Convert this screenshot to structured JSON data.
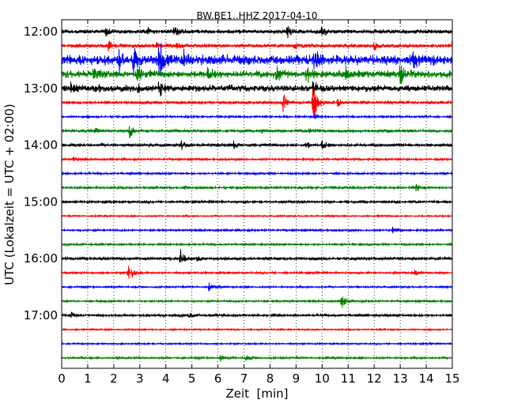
{
  "chart_data": {
    "type": "line",
    "title": "BW.BE1..HHZ 2017-04-10",
    "xlabel": "Zeit  [min]",
    "ylabel": "UTC (Lokalzeit = UTC + 02:00)",
    "xlim": [
      0,
      15
    ],
    "x_ticks": [
      "0",
      "1",
      "2",
      "3",
      "4",
      "5",
      "6",
      "7",
      "8",
      "9",
      "10",
      "11",
      "12",
      "13",
      "14",
      "15"
    ],
    "y_ticks": [
      "12:00",
      "13:00",
      "14:00",
      "15:00",
      "16:00",
      "17:00"
    ],
    "grid": "vertical dotted at each minute",
    "trace_interval_min": 15,
    "color_cycle": [
      "#000000",
      "#ff0000",
      "#0000ff",
      "#008000"
    ],
    "series": [
      {
        "start": "12:00",
        "color": "#000000",
        "noise": 2.2,
        "events": [
          {
            "t": 1.7,
            "a": 4
          },
          {
            "t": 3.3,
            "a": 4
          },
          {
            "t": 4.3,
            "a": 7
          },
          {
            "t": 8.65,
            "a": 9
          },
          {
            "t": 10.0,
            "a": 9
          }
        ]
      },
      {
        "start": "12:15",
        "color": "#ff0000",
        "noise": 2.0,
        "events": [
          {
            "t": 1.8,
            "a": 7
          },
          {
            "t": 3.65,
            "a": 5
          },
          {
            "t": 4.4,
            "a": 3
          },
          {
            "t": 8.95,
            "a": 4
          },
          {
            "t": 12.0,
            "a": 5
          },
          {
            "t": 14.95,
            "a": 6
          }
        ]
      },
      {
        "start": "12:30",
        "color": "#0000ff",
        "noise": 5.5,
        "events": [
          {
            "t": 2.2,
            "a": 12
          },
          {
            "t": 2.75,
            "a": 18
          },
          {
            "t": 3.75,
            "a": 32
          },
          {
            "t": 4.7,
            "a": 9
          },
          {
            "t": 9.7,
            "a": 12
          },
          {
            "t": 13.5,
            "a": 7
          }
        ]
      },
      {
        "start": "12:45",
        "color": "#008000",
        "noise": 4.0,
        "events": [
          {
            "t": 1.2,
            "a": 8
          },
          {
            "t": 2.9,
            "a": 11
          },
          {
            "t": 5.6,
            "a": 7
          },
          {
            "t": 8.25,
            "a": 10
          },
          {
            "t": 9.4,
            "a": 12
          },
          {
            "t": 10.9,
            "a": 9
          },
          {
            "t": 13.0,
            "a": 11
          }
        ]
      },
      {
        "start": "13:00",
        "color": "#000000",
        "noise": 3.5,
        "events": [
          {
            "t": 0.35,
            "a": 6
          },
          {
            "t": 1.3,
            "a": 5
          },
          {
            "t": 2.9,
            "a": 6
          },
          {
            "t": 3.75,
            "a": 12
          },
          {
            "t": 9.65,
            "a": 10
          }
        ]
      },
      {
        "start": "13:15",
        "color": "#ff0000",
        "noise": 1.5,
        "events": [
          {
            "t": 8.5,
            "a": 13
          },
          {
            "t": 9.65,
            "a": 38
          },
          {
            "t": 10.6,
            "a": 5
          }
        ]
      },
      {
        "start": "13:30",
        "color": "#0000ff",
        "noise": 1.0,
        "events": [
          {
            "t": 9.7,
            "a": 4
          }
        ]
      },
      {
        "start": "13:45",
        "color": "#008000",
        "noise": 1.5,
        "events": [
          {
            "t": 1.3,
            "a": 3
          },
          {
            "t": 2.6,
            "a": 9
          },
          {
            "t": 7.7,
            "a": 3
          },
          {
            "t": 9.5,
            "a": 4
          }
        ]
      },
      {
        "start": "14:00",
        "color": "#000000",
        "noise": 1.5,
        "events": [
          {
            "t": 4.6,
            "a": 5
          },
          {
            "t": 6.6,
            "a": 5
          },
          {
            "t": 9.4,
            "a": 5
          },
          {
            "t": 10.0,
            "a": 7
          }
        ]
      },
      {
        "start": "14:15",
        "color": "#ff0000",
        "noise": 1.0,
        "events": [
          {
            "t": 0.45,
            "a": 4
          }
        ]
      },
      {
        "start": "14:30",
        "color": "#0000ff",
        "noise": 1.0,
        "events": []
      },
      {
        "start": "14:45",
        "color": "#008000",
        "noise": 1.2,
        "events": [
          {
            "t": 4.7,
            "a": 3
          },
          {
            "t": 13.6,
            "a": 5
          }
        ]
      },
      {
        "start": "15:00",
        "color": "#000000",
        "noise": 1.2,
        "events": []
      },
      {
        "start": "15:15",
        "color": "#ff0000",
        "noise": 0.8,
        "events": []
      },
      {
        "start": "15:30",
        "color": "#0000ff",
        "noise": 1.0,
        "events": [
          {
            "t": 12.7,
            "a": 4
          }
        ]
      },
      {
        "start": "15:45",
        "color": "#008000",
        "noise": 1.0,
        "events": []
      },
      {
        "start": "16:00",
        "color": "#000000",
        "noise": 1.5,
        "events": [
          {
            "t": 4.55,
            "a": 13
          },
          {
            "t": 5.2,
            "a": 4
          }
        ]
      },
      {
        "start": "16:15",
        "color": "#ff0000",
        "noise": 1.0,
        "events": [
          {
            "t": 2.55,
            "a": 18
          },
          {
            "t": 13.55,
            "a": 4
          }
        ]
      },
      {
        "start": "16:30",
        "color": "#0000ff",
        "noise": 0.9,
        "events": [
          {
            "t": 5.65,
            "a": 5
          }
        ]
      },
      {
        "start": "16:45",
        "color": "#008000",
        "noise": 1.0,
        "events": [
          {
            "t": 10.75,
            "a": 11
          }
        ]
      },
      {
        "start": "17:00",
        "color": "#000000",
        "noise": 1.2,
        "events": [
          {
            "t": 0.35,
            "a": 4
          },
          {
            "t": 4.9,
            "a": 3
          }
        ]
      },
      {
        "start": "17:15",
        "color": "#ff0000",
        "noise": 0.8,
        "events": []
      },
      {
        "start": "17:30",
        "color": "#0000ff",
        "noise": 0.8,
        "events": []
      },
      {
        "start": "17:45",
        "color": "#008000",
        "noise": 1.0,
        "events": [
          {
            "t": 6.1,
            "a": 4
          },
          {
            "t": 7.05,
            "a": 4
          }
        ]
      }
    ]
  }
}
